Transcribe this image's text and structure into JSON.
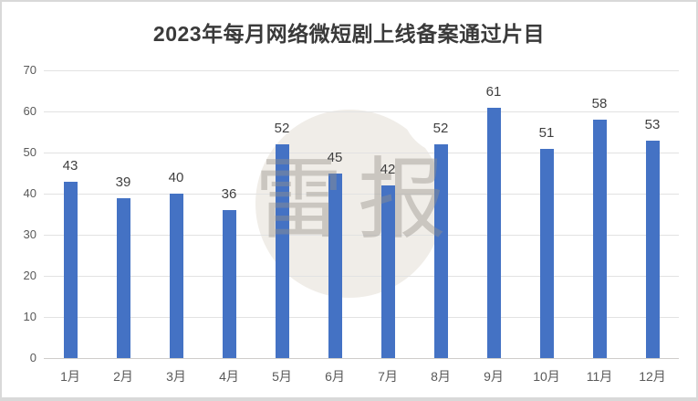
{
  "chart_data": {
    "type": "bar",
    "title": "2023年每月网络微短剧上线备案通过片目",
    "categories": [
      "1月",
      "2月",
      "3月",
      "4月",
      "5月",
      "6月",
      "7月",
      "8月",
      "9月",
      "10月",
      "11月",
      "12月"
    ],
    "values": [
      43,
      39,
      40,
      36,
      52,
      45,
      42,
      52,
      61,
      51,
      58,
      53
    ],
    "xlabel": "",
    "ylabel": "",
    "ylim": [
      0,
      70
    ],
    "yticks": [
      0,
      10,
      20,
      30,
      40,
      50,
      60,
      70
    ],
    "grid": true,
    "legend_position": "none",
    "data_labels": true,
    "bar_color": "#4472C4"
  },
  "watermark": {
    "text": "雷报",
    "circle_color": "#f0ede8",
    "text_color": "#96918a"
  },
  "colors": {
    "background": "#ffffff",
    "frame_border": "#d9d9d9",
    "title_text": "#3a3a3a",
    "tick_text": "#595959",
    "data_label_text": "#404040",
    "gridline": "#e2e2e2",
    "axis_line": "#cfcdcb",
    "bar": "#4472C4"
  }
}
